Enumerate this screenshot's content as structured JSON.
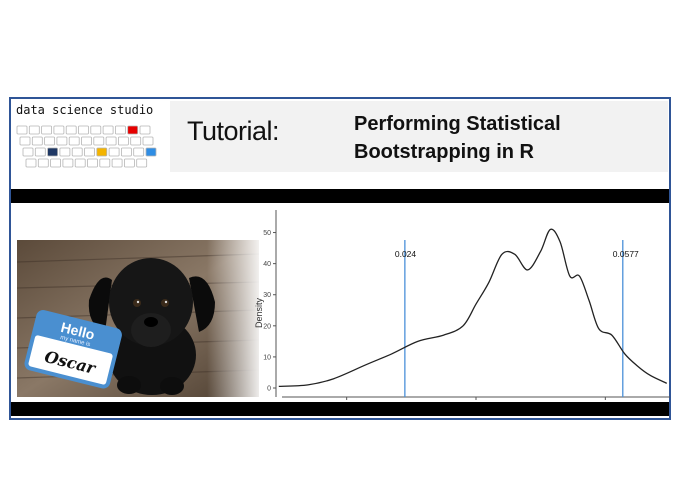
{
  "logo": {
    "text": "data science studio",
    "accent_colors": [
      "#e60000",
      "#1f3864",
      "#f4b400",
      "#2f8de4"
    ]
  },
  "header": {
    "tutorial_label": "Tutorial:",
    "title_line1": "Performing Statistical",
    "title_line2": "Bootstrapping in  R",
    "background": "#f2f2f2",
    "frame_color": "#2f5597"
  },
  "image": {
    "tag_hello": "Hello",
    "tag_subtitle": "my name is",
    "tag_name": "Oscar",
    "tag_color": "#4a8fd0"
  },
  "chart_data": {
    "type": "line",
    "xlabel": "",
    "ylabel": "Density",
    "ylim": [
      0,
      55
    ],
    "xlim": [
      0.005,
      0.065
    ],
    "y_ticks": [
      "0",
      "10",
      "20",
      "30",
      "40",
      "50"
    ],
    "x": [
      0.0045,
      0.009,
      0.013,
      0.018,
      0.022,
      0.026,
      0.03,
      0.033,
      0.035,
      0.037,
      0.039,
      0.041,
      0.043,
      0.045,
      0.0465,
      0.048,
      0.0495,
      0.051,
      0.0525,
      0.054,
      0.056,
      0.058,
      0.06,
      0.062,
      0.0645
    ],
    "y": [
      0.5,
      1,
      3,
      7.5,
      11,
      15,
      17,
      20,
      27,
      34,
      43,
      43,
      38,
      44,
      51,
      47,
      36,
      36,
      28,
      19,
      17,
      11,
      7,
      4,
      1.5
    ],
    "reference_lines": [
      {
        "label": "0.024",
        "x": 0.024,
        "color": "#4a90d9"
      },
      {
        "label": "0.0577",
        "x": 0.0577,
        "color": "#4a90d9"
      }
    ]
  }
}
